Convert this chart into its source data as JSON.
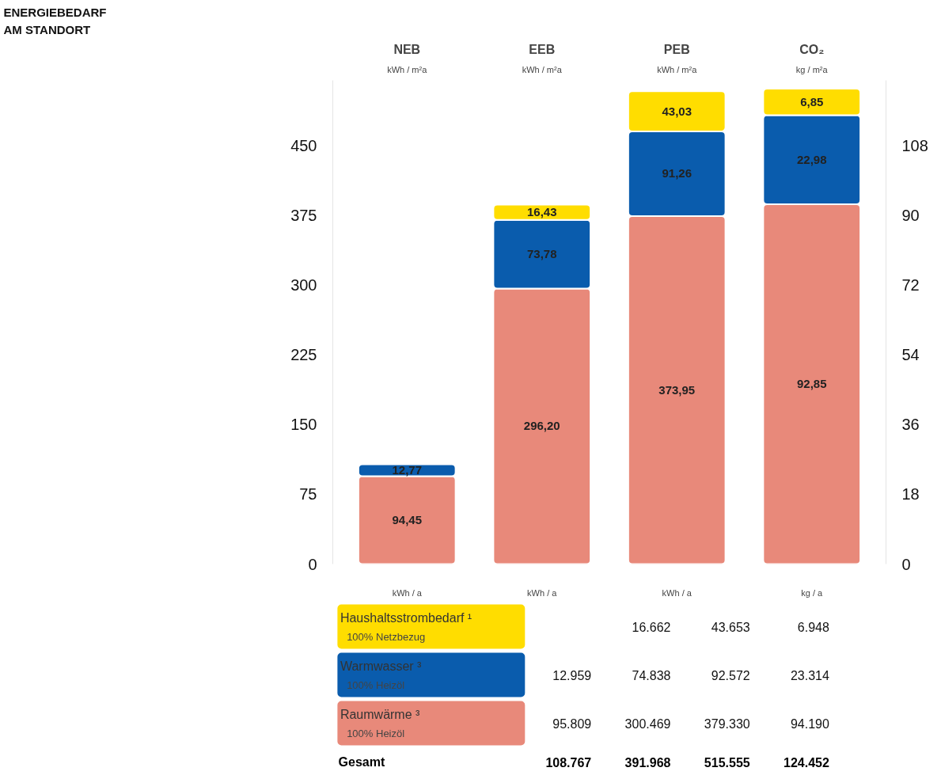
{
  "chart_data": {
    "type": "bar",
    "title": "ENERGIEBEDARF\nAM STANDORT",
    "categories": [
      "NEB",
      "EEB",
      "PEB",
      "CO₂"
    ],
    "stacked": true,
    "grid": false,
    "legend": "bottom left",
    "ylim": [
      0,
      520
    ],
    "yticks": [
      0,
      75,
      150,
      225,
      300,
      375,
      450
    ],
    "y2lim": [
      0,
      124.8
    ],
    "y2ticks": [
      0,
      18,
      36,
      54,
      72,
      90,
      108
    ],
    "series": [
      {
        "name": "Raumwärme ³",
        "color": "#e8897a",
        "values": [
          94.45,
          296.2,
          373.95,
          null
        ],
        "value_labels": [
          "94,45",
          "296,20",
          "373,95",
          null
        ]
      },
      {
        "name": "Warmwasser ³",
        "color": "#0a5cad",
        "values": [
          12.77,
          73.78,
          91.26,
          null
        ],
        "value_labels": [
          "12,77",
          "73,78",
          "91,26",
          null
        ]
      },
      {
        "name": "Haushaltsstrombedarf ¹",
        "color": "#ffdd00",
        "values": [
          null,
          16.43,
          43.03,
          null
        ],
        "value_labels": [
          null,
          "16,43",
          "43,03",
          null
        ]
      },
      {
        "color": "#e8897a",
        "axis": "y2",
        "values": [
          null,
          null,
          null,
          92.85
        ],
        "value_labels": [
          null,
          null,
          null,
          "92,85"
        ]
      },
      {
        "color": "#0a5cad",
        "axis": "y2",
        "values": [
          null,
          null,
          null,
          22.98
        ],
        "value_labels": [
          null,
          null,
          null,
          "22,98"
        ]
      },
      {
        "color": "#ffdd00",
        "axis": "y2",
        "values": [
          null,
          null,
          null,
          6.85
        ],
        "value_labels": [
          null,
          null,
          null,
          "6,85"
        ]
      }
    ],
    "annotations": [
      "kWh / m²a",
      "kWh / m²a",
      "kWh / m²a",
      "kg / m²a",
      "kWh / a",
      "kWh / a",
      "kWh / a",
      "kg / a",
      "100% Heizöl",
      "100% Heizöl",
      "100% Netzbezug",
      "95.809",
      "300.469",
      "379.330",
      "94.190",
      "12.959",
      "74.838",
      "92.572",
      "23.314",
      "16.662",
      "43.653",
      "6.948",
      "Gesamt",
      "108.767",
      "391.968",
      "515.555",
      "124.452"
    ]
  }
}
